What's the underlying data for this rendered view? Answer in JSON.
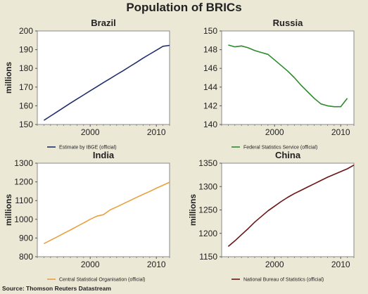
{
  "title": "Population of BRICs",
  "source": "Source: Thomson Reuters Datastream",
  "chart_data": [
    {
      "type": "line",
      "title": "Brazil",
      "ylabel": "millions",
      "xlim": [
        1992,
        2012
      ],
      "ylim": [
        150,
        200
      ],
      "yticks": [
        150,
        160,
        170,
        180,
        190,
        200
      ],
      "xticks": [
        2000,
        2010
      ],
      "color": "#1f2f6b",
      "legend": "Estimate by IBGE (official)",
      "series": [
        {
          "x": [
            1993,
            1994,
            1995,
            1996,
            1997,
            1998,
            1999,
            2000,
            2001,
            2002,
            2003,
            2004,
            2005,
            2006,
            2007,
            2008,
            2009,
            2010,
            2011,
            2012
          ],
          "y": [
            152.2,
            154.5,
            156.8,
            159.1,
            161.4,
            163.6,
            165.8,
            168.0,
            170.2,
            172.4,
            174.5,
            176.7,
            178.8,
            181.0,
            183.2,
            185.5,
            187.6,
            189.7,
            191.8,
            192.3
          ]
        }
      ]
    },
    {
      "type": "line",
      "title": "Russia",
      "ylabel": "",
      "xlim": [
        1992,
        2012
      ],
      "ylim": [
        140,
        150
      ],
      "yticks": [
        140,
        142,
        144,
        146,
        148,
        150
      ],
      "xticks": [
        2000,
        2010
      ],
      "color": "#2d8a2d",
      "legend": "Federal Statistics Service (official)",
      "series": [
        {
          "x": [
            1993,
            1994,
            1995,
            1996,
            1997,
            1998,
            1999,
            2000,
            2001,
            2002,
            2003,
            2004,
            2005,
            2006,
            2007,
            2008,
            2009,
            2010,
            2011
          ],
          "y": [
            148.5,
            148.3,
            148.4,
            148.2,
            147.9,
            147.7,
            147.5,
            146.9,
            146.3,
            145.7,
            145.0,
            144.2,
            143.5,
            142.8,
            142.2,
            142.0,
            141.9,
            141.9,
            142.8
          ]
        }
      ]
    },
    {
      "type": "line",
      "title": "India",
      "ylabel": "millions",
      "xlim": [
        1992,
        2012
      ],
      "ylim": [
        800,
        1300
      ],
      "yticks": [
        800,
        900,
        1000,
        1100,
        1200,
        1300
      ],
      "xticks": [
        2000,
        2010
      ],
      "color": "#e8a13d",
      "legend": "Central Statistical Organisation (official)",
      "series": [
        {
          "x": [
            1993,
            1994,
            1995,
            1996,
            1997,
            1998,
            1999,
            2000,
            2001,
            2002,
            2003,
            2004,
            2005,
            2006,
            2007,
            2008,
            2009,
            2010,
            2011,
            2012
          ],
          "y": [
            870,
            888,
            906,
            925,
            943,
            962,
            981,
            1000,
            1017,
            1025,
            1050,
            1066,
            1083,
            1100,
            1117,
            1133,
            1149,
            1166,
            1182,
            1198
          ]
        }
      ]
    },
    {
      "type": "line",
      "title": "China",
      "ylabel": "millions",
      "xlim": [
        1992,
        2012
      ],
      "ylim": [
        1150,
        1350
      ],
      "yticks": [
        1150,
        1200,
        1250,
        1300,
        1350
      ],
      "xticks": [
        2000,
        2010
      ],
      "color": "#6b1414",
      "legend": "National Bureau of Statistics (official)",
      "series": [
        {
          "x": [
            1993,
            1994,
            1995,
            1996,
            1997,
            1998,
            1999,
            2000,
            2001,
            2002,
            2003,
            2004,
            2005,
            2006,
            2007,
            2008,
            2009,
            2010,
            2011,
            2012
          ],
          "y": [
            1172,
            1184,
            1197,
            1210,
            1224,
            1236,
            1248,
            1258,
            1268,
            1277,
            1285,
            1292,
            1299,
            1306,
            1313,
            1320,
            1326,
            1332,
            1338,
            1346
          ]
        }
      ]
    }
  ]
}
